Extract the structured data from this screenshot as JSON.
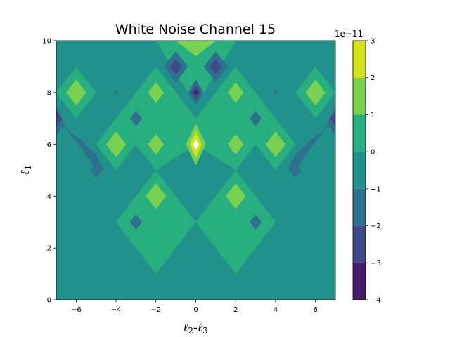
{
  "chart_data": {
    "type": "heatmap",
    "title": "White Noise Channel 15",
    "xlabel": "ℓ2-ℓ3",
    "ylabel": "ℓ1",
    "xlim": [
      -7,
      7
    ],
    "ylim": [
      0,
      10
    ],
    "x_ticks": [
      "−6",
      "−4",
      "−2",
      "0",
      "2",
      "4",
      "6"
    ],
    "x_tick_values": [
      -6,
      -4,
      -2,
      0,
      2,
      4,
      6
    ],
    "y_ticks": [
      "0",
      "2",
      "4",
      "6",
      "8",
      "10"
    ],
    "y_tick_values": [
      0,
      2,
      4,
      6,
      8,
      10
    ],
    "colorbar": {
      "exponent_label": "1e−11",
      "levels": [
        -4,
        -3,
        -2,
        -1,
        0,
        1,
        2,
        3
      ],
      "tick_labels": [
        "−4",
        "−3",
        "−2",
        "−1",
        "0",
        "1",
        "2",
        "3"
      ],
      "colors": [
        "#481a6c",
        "#3e4a89",
        "#2d718e",
        "#21918c",
        "#29af7f",
        "#7ad151",
        "#d2e21b"
      ],
      "peak_color": "#ffffff"
    },
    "background_level_color": "#21918c",
    "regions": [
      {
        "level": 0,
        "points": [
          [
            -2,
            10
          ],
          [
            2,
            10
          ],
          [
            0,
            7.5
          ]
        ]
      },
      {
        "level": 0,
        "points": [
          [
            -2,
            8
          ],
          [
            0,
            6
          ],
          [
            -2,
            5
          ],
          [
            -3,
            6
          ]
        ]
      },
      {
        "level": 0,
        "points": [
          [
            2,
            8
          ],
          [
            3,
            6
          ],
          [
            2,
            5
          ],
          [
            0,
            6
          ]
        ]
      },
      {
        "level": 0,
        "points": [
          [
            -2,
            9
          ],
          [
            0,
            7
          ],
          [
            2,
            9
          ],
          [
            4,
            7
          ],
          [
            2,
            5
          ],
          [
            4,
            3
          ],
          [
            2,
            1
          ],
          [
            0,
            3
          ],
          [
            -2,
            1
          ],
          [
            -4,
            3
          ],
          [
            -2,
            5
          ],
          [
            -4,
            7
          ]
        ]
      },
      {
        "level": 0,
        "points": [
          [
            -6,
            9
          ],
          [
            -5,
            8
          ],
          [
            -6,
            7
          ],
          [
            -7,
            8
          ]
        ]
      },
      {
        "level": 0,
        "points": [
          [
            6,
            9
          ],
          [
            7,
            8
          ],
          [
            6,
            7
          ],
          [
            5,
            8
          ]
        ]
      },
      {
        "level": 0,
        "points": [
          [
            -4,
            7
          ],
          [
            -3,
            6
          ],
          [
            -4,
            5
          ],
          [
            -5,
            6
          ]
        ]
      },
      {
        "level": 0,
        "points": [
          [
            4,
            7
          ],
          [
            5,
            6
          ],
          [
            4,
            5
          ],
          [
            3,
            6
          ]
        ]
      },
      {
        "level": -1,
        "points": [
          [
            0,
            6
          ],
          [
            2,
            5
          ],
          [
            0,
            3
          ],
          [
            -2,
            5
          ]
        ]
      },
      {
        "level": 1,
        "points": [
          [
            -1,
            10
          ],
          [
            1,
            10
          ],
          [
            0,
            9.4
          ]
        ]
      },
      {
        "level": 1,
        "points": [
          [
            -6,
            8.5
          ],
          [
            -5.5,
            8
          ],
          [
            -6,
            7.5
          ],
          [
            -6.5,
            8
          ]
        ]
      },
      {
        "level": 1,
        "points": [
          [
            6,
            8.5
          ],
          [
            6.5,
            8
          ],
          [
            6,
            7.5
          ],
          [
            5.5,
            8
          ]
        ]
      },
      {
        "level": 1,
        "points": [
          [
            -2,
            8.4
          ],
          [
            -1.6,
            8
          ],
          [
            -2,
            7.6
          ],
          [
            -2.4,
            8
          ]
        ]
      },
      {
        "level": 1,
        "points": [
          [
            2,
            8.4
          ],
          [
            2.4,
            8
          ],
          [
            2,
            7.6
          ],
          [
            1.6,
            8
          ]
        ]
      },
      {
        "level": 1,
        "points": [
          [
            -4,
            6.5
          ],
          [
            -3.5,
            6
          ],
          [
            -4,
            5.5
          ],
          [
            -4.5,
            6
          ]
        ]
      },
      {
        "level": 1,
        "points": [
          [
            4,
            6.5
          ],
          [
            4.5,
            6
          ],
          [
            4,
            5.5
          ],
          [
            3.5,
            6
          ]
        ]
      },
      {
        "level": 1,
        "points": [
          [
            -2,
            6.4
          ],
          [
            -1.6,
            6
          ],
          [
            -2,
            5.6
          ],
          [
            -2.4,
            6
          ]
        ]
      },
      {
        "level": 1,
        "points": [
          [
            2,
            6.4
          ],
          [
            2.4,
            6
          ],
          [
            2,
            5.6
          ],
          [
            1.6,
            6
          ]
        ]
      },
      {
        "level": 1,
        "points": [
          [
            0,
            6.8
          ],
          [
            0.5,
            6
          ],
          [
            0,
            5.2
          ],
          [
            -0.5,
            6
          ]
        ]
      },
      {
        "level": 1,
        "points": [
          [
            -2,
            4.5
          ],
          [
            -1.5,
            4
          ],
          [
            -2,
            3.5
          ],
          [
            -2.5,
            4
          ]
        ]
      },
      {
        "level": 1,
        "points": [
          [
            2,
            4.5
          ],
          [
            2.5,
            4
          ],
          [
            2,
            3.5
          ],
          [
            1.5,
            4
          ]
        ]
      },
      {
        "level": 2,
        "points": [
          [
            0,
            6.5
          ],
          [
            0.3,
            6
          ],
          [
            0,
            5.5
          ],
          [
            -0.3,
            6
          ]
        ]
      },
      {
        "level": 3,
        "points": [
          [
            0,
            6.2
          ],
          [
            0.15,
            6
          ],
          [
            0,
            5.8
          ],
          [
            -0.15,
            6
          ]
        ]
      },
      {
        "level": -2,
        "points": [
          [
            -7,
            7.5
          ],
          [
            -6.5,
            6.6
          ],
          [
            -5.7,
            5.8
          ],
          [
            -5,
            5
          ],
          [
            -4.6,
            5
          ],
          [
            -5,
            5.6
          ],
          [
            -5.8,
            6.2
          ],
          [
            -6.7,
            6.7
          ],
          [
            -7,
            6.3
          ]
        ]
      },
      {
        "level": -2,
        "points": [
          [
            7,
            7.5
          ],
          [
            6.5,
            6.6
          ],
          [
            5.7,
            5.8
          ],
          [
            5,
            5
          ],
          [
            4.6,
            5
          ],
          [
            5,
            5.6
          ],
          [
            5.8,
            6.2
          ],
          [
            6.7,
            6.7
          ],
          [
            7,
            6.3
          ]
        ]
      },
      {
        "level": -2,
        "points": [
          [
            -1,
            9.6
          ],
          [
            -0.4,
            9
          ],
          [
            -1,
            8.4
          ],
          [
            -1.6,
            9
          ]
        ]
      },
      {
        "level": -2,
        "points": [
          [
            1,
            9.6
          ],
          [
            1.6,
            9
          ],
          [
            1,
            8.4
          ],
          [
            0.4,
            9
          ]
        ]
      },
      {
        "level": -2,
        "points": [
          [
            0,
            8.5
          ],
          [
            0.4,
            8
          ],
          [
            0,
            7.5
          ],
          [
            -0.4,
            8
          ]
        ]
      },
      {
        "level": -2,
        "points": [
          [
            -3,
            7.3
          ],
          [
            -2.7,
            7
          ],
          [
            -3,
            6.7
          ],
          [
            -3.3,
            7
          ]
        ]
      },
      {
        "level": -2,
        "points": [
          [
            3,
            7.3
          ],
          [
            3.3,
            7
          ],
          [
            3,
            6.7
          ],
          [
            2.7,
            7
          ]
        ]
      },
      {
        "level": -2,
        "points": [
          [
            -5,
            5.3
          ],
          [
            -4.7,
            5
          ],
          [
            -5,
            4.7
          ],
          [
            -5.3,
            5
          ]
        ]
      },
      {
        "level": -2,
        "points": [
          [
            5,
            5.3
          ],
          [
            5.3,
            5
          ],
          [
            5,
            4.7
          ],
          [
            4.7,
            5
          ]
        ]
      },
      {
        "level": -2,
        "points": [
          [
            -3,
            3.3
          ],
          [
            -2.7,
            3
          ],
          [
            -3,
            2.7
          ],
          [
            -3.3,
            3
          ]
        ]
      },
      {
        "level": -2,
        "points": [
          [
            3,
            3.3
          ],
          [
            3.3,
            3
          ],
          [
            3,
            2.7
          ],
          [
            2.7,
            3
          ]
        ]
      },
      {
        "level": -2,
        "points": [
          [
            -4,
            8.1
          ],
          [
            -3.9,
            8
          ],
          [
            -4,
            7.9
          ],
          [
            -4.1,
            8
          ]
        ]
      },
      {
        "level": -2,
        "points": [
          [
            4,
            8.1
          ],
          [
            4.1,
            8
          ],
          [
            4,
            7.9
          ],
          [
            3.9,
            8
          ]
        ]
      },
      {
        "level": -3,
        "points": [
          [
            -1,
            9.3
          ],
          [
            -0.7,
            9
          ],
          [
            -1,
            8.7
          ],
          [
            -1.3,
            9
          ]
        ]
      },
      {
        "level": -3,
        "points": [
          [
            1,
            9.3
          ],
          [
            1.3,
            9
          ],
          [
            1,
            8.7
          ],
          [
            0.7,
            9
          ]
        ]
      },
      {
        "level": -3,
        "points": [
          [
            0,
            8.3
          ],
          [
            0.25,
            8
          ],
          [
            0,
            7.7
          ],
          [
            -0.25,
            8
          ]
        ]
      },
      {
        "level": -3,
        "points": [
          [
            -7,
            7.3
          ],
          [
            -6.7,
            7
          ],
          [
            -7,
            6.7
          ]
        ]
      },
      {
        "level": -3,
        "points": [
          [
            7,
            7.3
          ],
          [
            6.7,
            7
          ],
          [
            7,
            6.7
          ]
        ]
      },
      {
        "level": -4,
        "points": [
          [
            0,
            8.12
          ],
          [
            0.1,
            8
          ],
          [
            0,
            7.88
          ],
          [
            -0.1,
            8
          ]
        ]
      }
    ]
  }
}
